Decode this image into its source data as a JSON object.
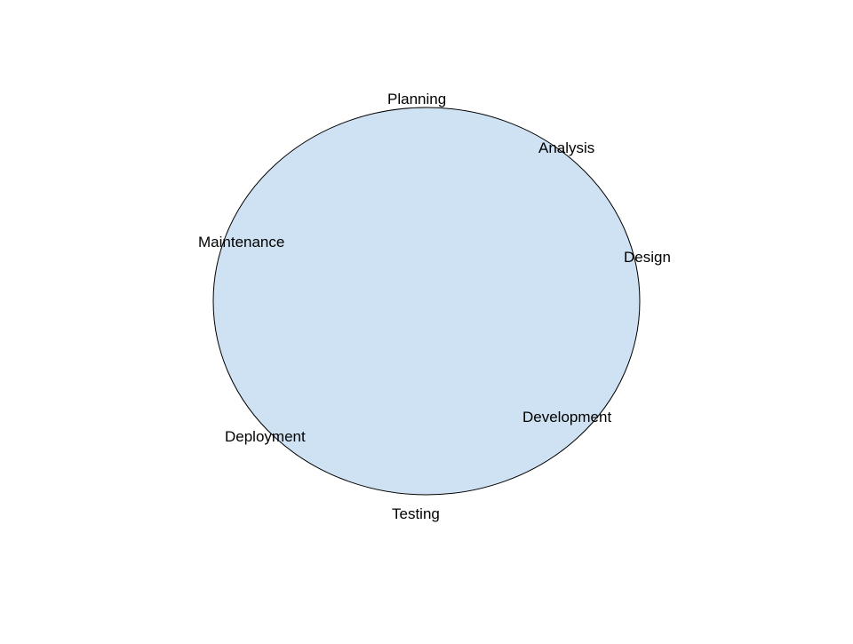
{
  "diagram": {
    "shape": "ellipse",
    "colors": {
      "fill": "#cfe2f3",
      "stroke": "#000000",
      "text": "#000000"
    },
    "stages": [
      {
        "id": "planning",
        "label": "Planning"
      },
      {
        "id": "analysis",
        "label": "Analysis"
      },
      {
        "id": "design",
        "label": "Design"
      },
      {
        "id": "development",
        "label": "Development"
      },
      {
        "id": "testing",
        "label": "Testing"
      },
      {
        "id": "deployment",
        "label": "Deployment"
      },
      {
        "id": "maintenance",
        "label": "Maintenance"
      }
    ]
  }
}
